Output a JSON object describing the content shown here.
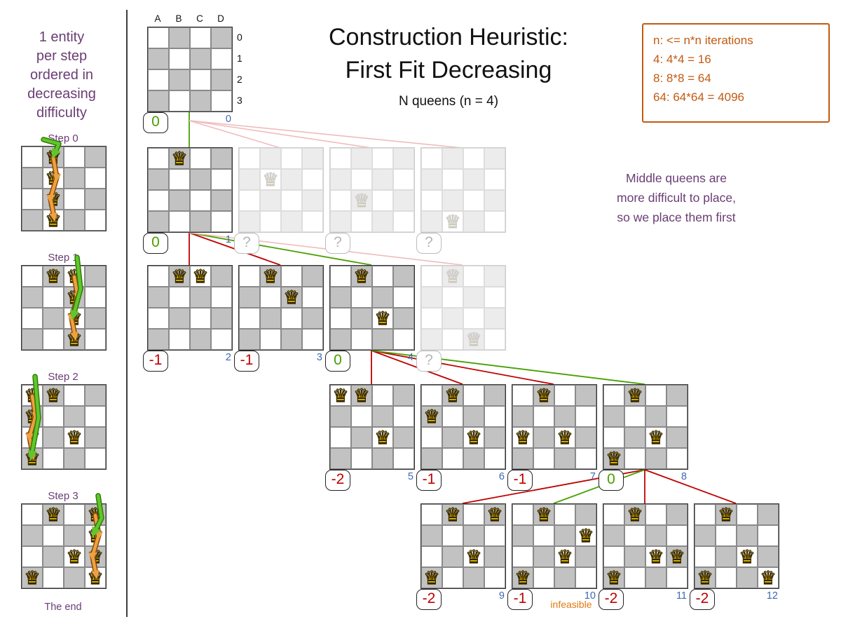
{
  "colors": {
    "purple": "#6a3d74",
    "orange": "#c25a11",
    "green": "#47a000",
    "red": "#c00000",
    "blue": "#3d68b0",
    "pink": "#f0bcbc",
    "board_dark": "#c2c2c2",
    "queen_gold": "#ffd400"
  },
  "sidebar": {
    "intro_lines": [
      "1 entity",
      "per step",
      "ordered in",
      "decreasing",
      "difficulty"
    ],
    "steps": [
      {
        "label": "Step 0",
        "placed": [],
        "tried_col": "B",
        "selected_row": 0
      },
      {
        "label": "Step 1",
        "placed": [
          "B0"
        ],
        "tried_col": "C",
        "selected_row": 2
      },
      {
        "label": "Step 2",
        "placed": [
          "B0",
          "C2"
        ],
        "tried_col": "A",
        "selected_row": 3
      },
      {
        "label": "Step 3",
        "placed": [
          "B0",
          "C2",
          "A3"
        ],
        "tried_col": "D",
        "selected_row": 1
      }
    ],
    "end_label": "The end"
  },
  "header": {
    "title_line1": "Construction Heuristic:",
    "title_line2": "First Fit Decreasing",
    "subtitle": "N queens (n = 4)"
  },
  "info_box": {
    "lines": [
      "n: <= n*n iterations",
      "4: 4*4 = 16",
      "8: 8*8 = 64",
      "64: 64*64 = 4096"
    ]
  },
  "annotation": {
    "lines": [
      "Middle queens are",
      "more difficult to place,",
      "so we place them first"
    ]
  },
  "board_axes": {
    "columns": [
      "A",
      "B",
      "C",
      "D"
    ],
    "rows": [
      "0",
      "1",
      "2",
      "3"
    ]
  },
  "tree": {
    "root": {
      "queens": [],
      "score": "0",
      "score_color": "green",
      "index": "0",
      "faded": false
    },
    "levels": [
      {
        "boards": [
          {
            "queens": [
              "B0"
            ],
            "score": "0",
            "score_color": "green",
            "index": "1",
            "faded": false
          },
          {
            "queens": [
              "B1"
            ],
            "score": "?",
            "faded": true
          },
          {
            "queens": [
              "B2"
            ],
            "score": "?",
            "faded": true
          },
          {
            "queens": [
              "B3"
            ],
            "score": "?",
            "faded": true
          }
        ]
      },
      {
        "boards": [
          {
            "queens": [
              "B0",
              "C0"
            ],
            "score": "-1",
            "score_color": "red",
            "index": "2",
            "faded": false
          },
          {
            "queens": [
              "B0",
              "C1"
            ],
            "score": "-1",
            "score_color": "red",
            "index": "3",
            "faded": false
          },
          {
            "queens": [
              "B0",
              "C2"
            ],
            "score": "0",
            "score_color": "green",
            "index": "4",
            "faded": false
          },
          {
            "queens": [
              "B0",
              "C3"
            ],
            "score": "?",
            "faded": true
          }
        ]
      },
      {
        "boards": [
          {
            "queens": [
              "A0",
              "B0",
              "C2"
            ],
            "score": "-2",
            "score_color": "red",
            "index": "5",
            "faded": false
          },
          {
            "queens": [
              "B0",
              "A1",
              "C2"
            ],
            "score": "-1",
            "score_color": "red",
            "index": "6",
            "faded": false
          },
          {
            "queens": [
              "B0",
              "A2",
              "C2"
            ],
            "score": "-1",
            "score_color": "red",
            "index": "7",
            "faded": false
          },
          {
            "queens": [
              "B0",
              "C2",
              "A3"
            ],
            "score": "0",
            "score_color": "green",
            "index": "8",
            "faded": false
          }
        ]
      },
      {
        "boards": [
          {
            "queens": [
              "B0",
              "D0",
              "C2",
              "A3"
            ],
            "score": "-2",
            "score_color": "red",
            "index": "9",
            "faded": false
          },
          {
            "queens": [
              "B0",
              "D1",
              "C2",
              "A3"
            ],
            "score": "-1",
            "score_color": "red",
            "index": "10",
            "faded": false,
            "note": "infeasible"
          },
          {
            "queens": [
              "B0",
              "C2",
              "D2",
              "A3"
            ],
            "score": "-2",
            "score_color": "red",
            "index": "11",
            "faded": false
          },
          {
            "queens": [
              "B0",
              "C2",
              "A3",
              "D3"
            ],
            "score": "-2",
            "score_color": "red",
            "index": "12",
            "faded": false
          }
        ]
      }
    ]
  }
}
